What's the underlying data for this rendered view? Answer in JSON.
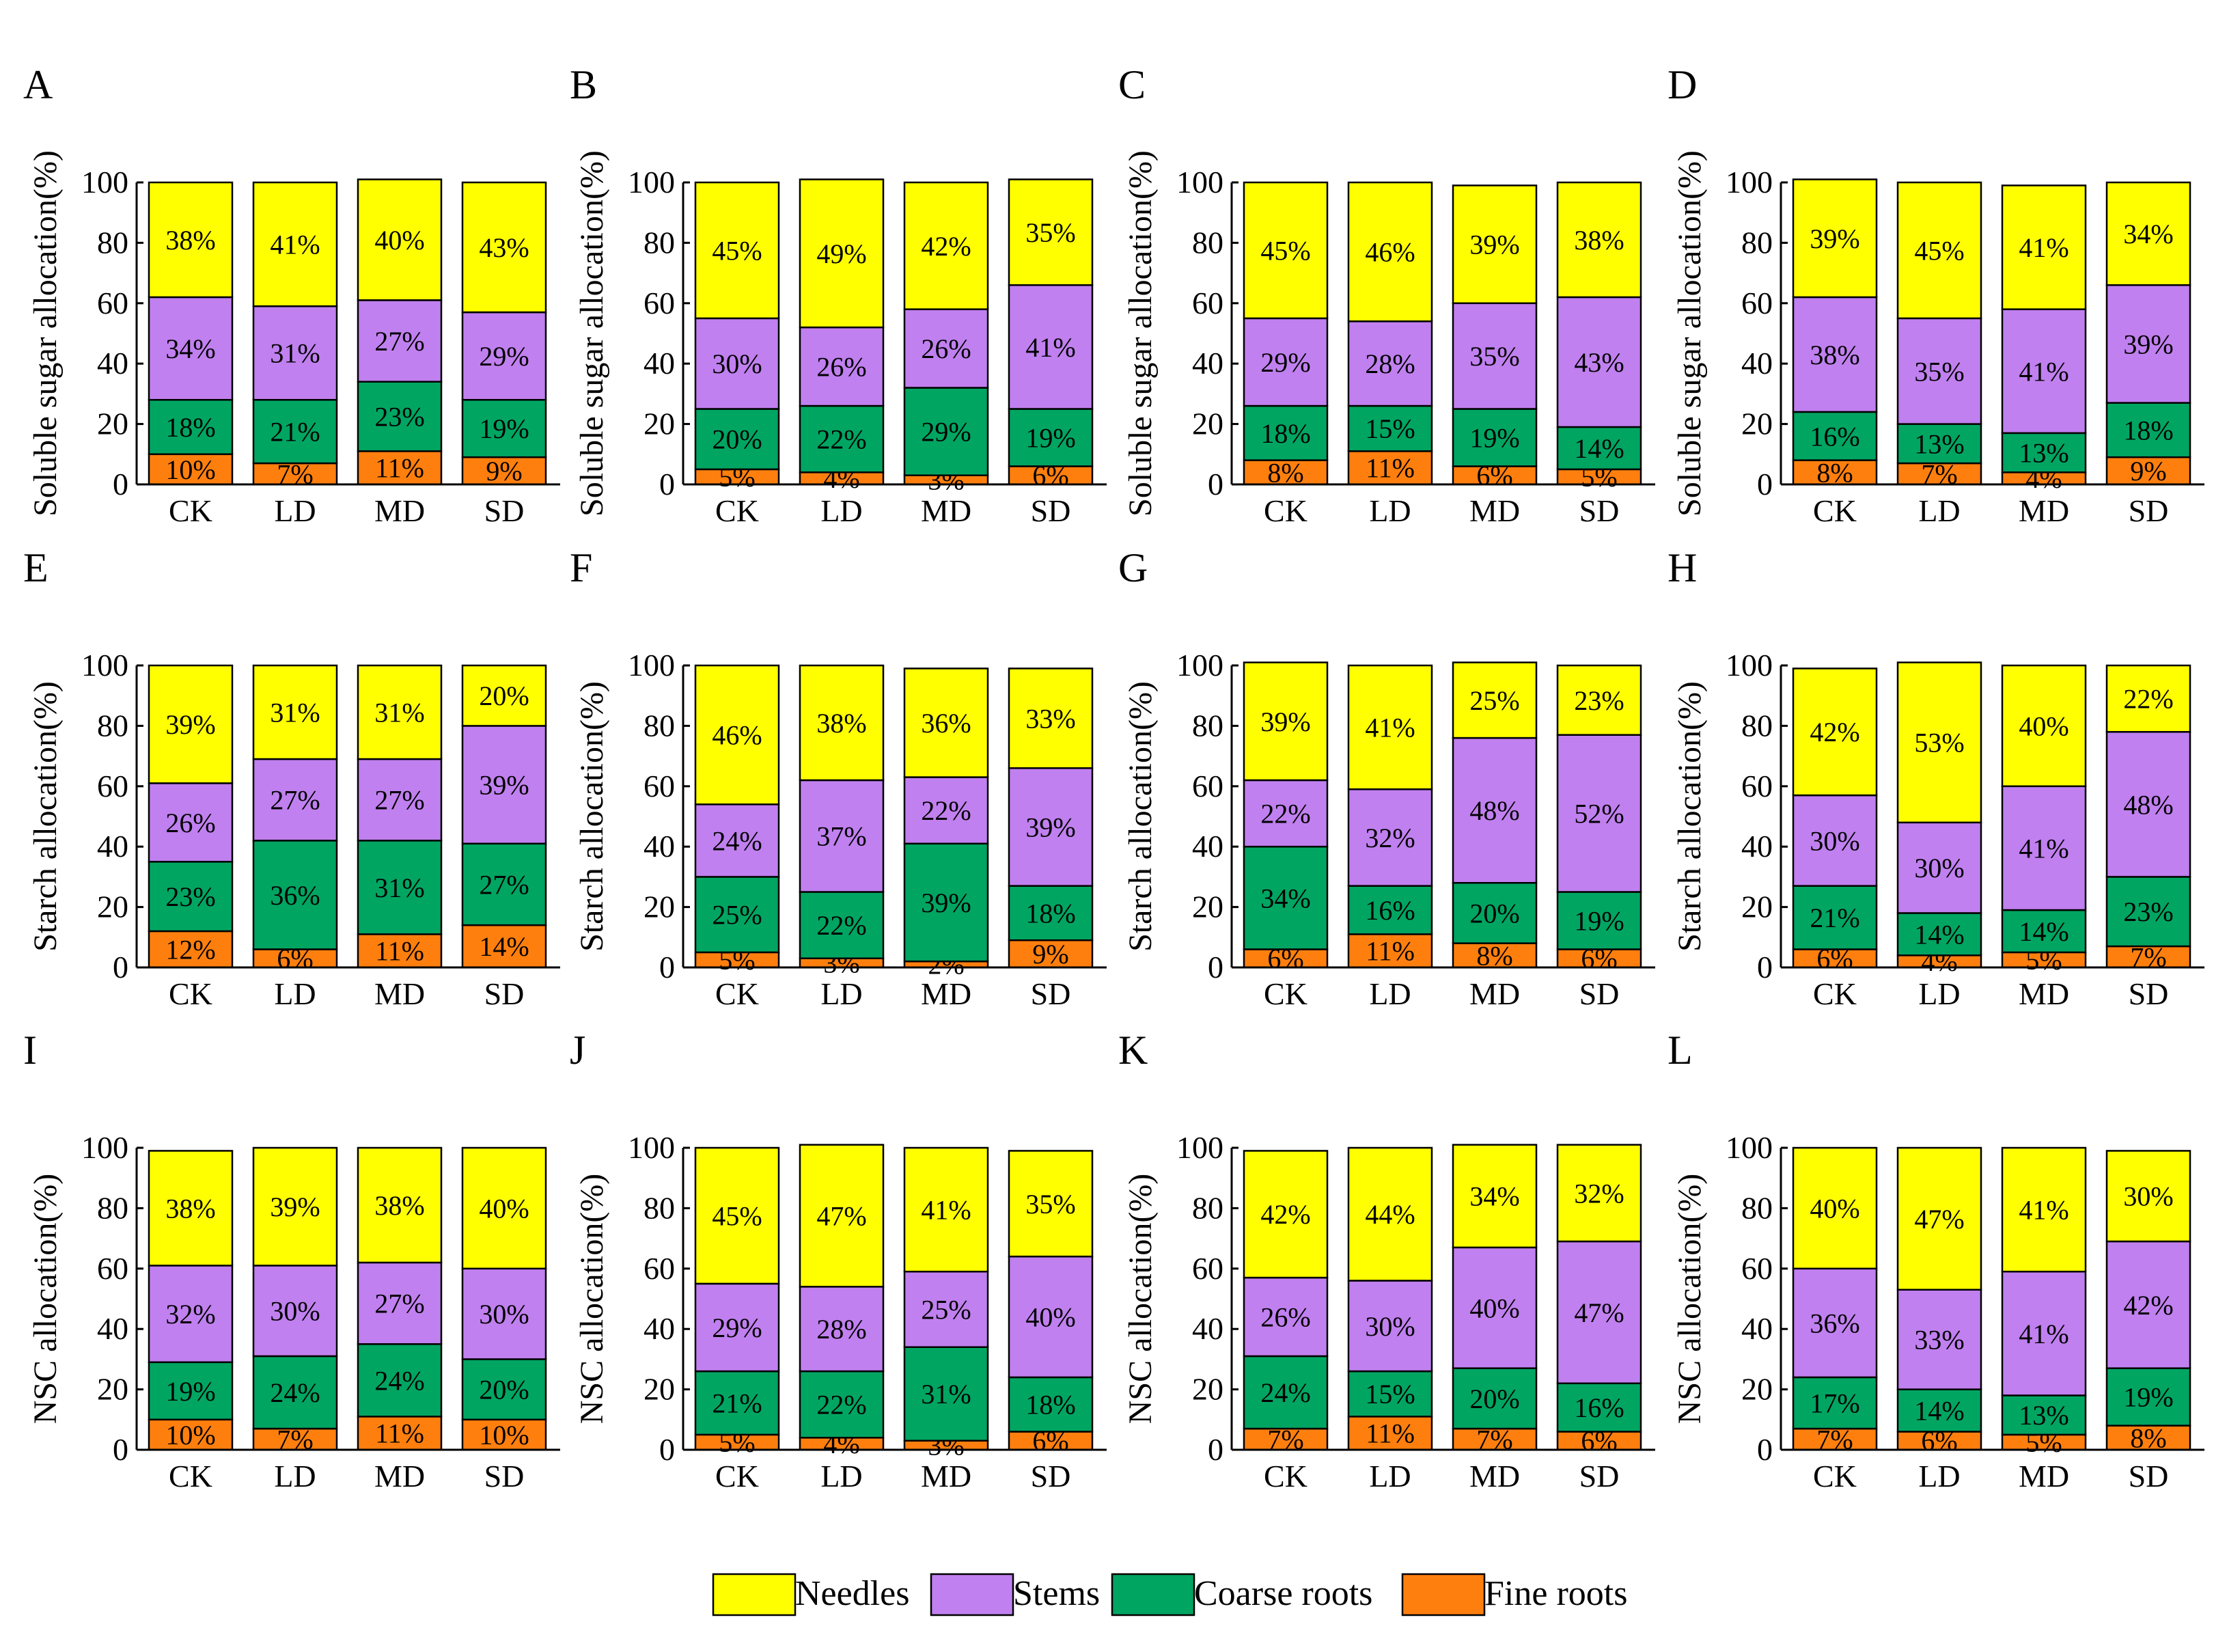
{
  "categories": [
    "CK",
    "LD",
    "MD",
    "SD"
  ],
  "series_names": [
    "Fine roots",
    "Coarse roots",
    "Stems",
    "Needles"
  ],
  "colors": {
    "Fine roots": "#ff7f0e",
    "Coarse roots": "#00a562",
    "Stems": "#c080ef",
    "Needles": "#ffff00"
  },
  "y_ticks": [
    "0",
    "20",
    "40",
    "60",
    "80",
    "100"
  ],
  "legend": {
    "items": [
      {
        "name": "Needles",
        "label": "Needles",
        "color": "#ffff00"
      },
      {
        "name": "Stems",
        "label": "Stems",
        "color": "#c080ef"
      },
      {
        "name": "Coarse roots",
        "label": "Coarse roots",
        "color": "#00a562"
      },
      {
        "name": "Fine roots",
        "label": "Fine roots",
        "color": "#ff7f0e"
      }
    ]
  },
  "chart_data": [
    {
      "panel": "A",
      "type": "bar",
      "stacked": true,
      "ylabel": "Soluble sugar allocation(%)",
      "ylim": [
        0,
        100
      ],
      "categories": [
        "CK",
        "LD",
        "MD",
        "SD"
      ],
      "series": [
        {
          "name": "Fine roots",
          "values": [
            10,
            7,
            11,
            9
          ]
        },
        {
          "name": "Coarse roots",
          "values": [
            18,
            21,
            23,
            19
          ]
        },
        {
          "name": "Stems",
          "values": [
            34,
            31,
            27,
            29
          ]
        },
        {
          "name": "Needles",
          "values": [
            38,
            41,
            40,
            43
          ]
        }
      ]
    },
    {
      "panel": "B",
      "type": "bar",
      "stacked": true,
      "ylabel": "Soluble sugar allocation(%)",
      "ylim": [
        0,
        100
      ],
      "categories": [
        "CK",
        "LD",
        "MD",
        "SD"
      ],
      "series": [
        {
          "name": "Fine roots",
          "values": [
            5,
            4,
            3,
            6
          ]
        },
        {
          "name": "Coarse roots",
          "values": [
            20,
            22,
            29,
            19
          ]
        },
        {
          "name": "Stems",
          "values": [
            30,
            26,
            26,
            41
          ]
        },
        {
          "name": "Needles",
          "values": [
            45,
            49,
            42,
            35
          ]
        }
      ]
    },
    {
      "panel": "C",
      "type": "bar",
      "stacked": true,
      "ylabel": "Soluble sugar allocation(%)",
      "ylim": [
        0,
        100
      ],
      "categories": [
        "CK",
        "LD",
        "MD",
        "SD"
      ],
      "series": [
        {
          "name": "Fine roots",
          "values": [
            8,
            11,
            6,
            5
          ]
        },
        {
          "name": "Coarse roots",
          "values": [
            18,
            15,
            19,
            14
          ]
        },
        {
          "name": "Stems",
          "values": [
            29,
            28,
            35,
            43
          ]
        },
        {
          "name": "Needles",
          "values": [
            45,
            46,
            39,
            38
          ]
        }
      ]
    },
    {
      "panel": "D",
      "type": "bar",
      "stacked": true,
      "ylabel": "Soluble sugar allocation(%)",
      "ylim": [
        0,
        100
      ],
      "categories": [
        "CK",
        "LD",
        "MD",
        "SD"
      ],
      "series": [
        {
          "name": "Fine roots",
          "values": [
            8,
            7,
            4,
            9
          ]
        },
        {
          "name": "Coarse roots",
          "values": [
            16,
            13,
            13,
            18
          ]
        },
        {
          "name": "Stems",
          "values": [
            38,
            35,
            41,
            39
          ]
        },
        {
          "name": "Needles",
          "values": [
            39,
            45,
            41,
            34
          ]
        }
      ]
    },
    {
      "panel": "E",
      "type": "bar",
      "stacked": true,
      "ylabel": "Starch allocation(%)",
      "ylim": [
        0,
        100
      ],
      "categories": [
        "CK",
        "LD",
        "MD",
        "SD"
      ],
      "series": [
        {
          "name": "Fine roots",
          "values": [
            12,
            6,
            11,
            14
          ]
        },
        {
          "name": "Coarse roots",
          "values": [
            23,
            36,
            31,
            27
          ]
        },
        {
          "name": "Stems",
          "values": [
            26,
            27,
            27,
            39
          ]
        },
        {
          "name": "Needles",
          "values": [
            39,
            31,
            31,
            20
          ]
        }
      ]
    },
    {
      "panel": "F",
      "type": "bar",
      "stacked": true,
      "ylabel": "Starch allocation(%)",
      "ylim": [
        0,
        100
      ],
      "categories": [
        "CK",
        "LD",
        "MD",
        "SD"
      ],
      "series": [
        {
          "name": "Fine roots",
          "values": [
            5,
            3,
            2,
            9
          ]
        },
        {
          "name": "Coarse roots",
          "values": [
            25,
            22,
            39,
            18
          ]
        },
        {
          "name": "Stems",
          "values": [
            24,
            37,
            22,
            39
          ]
        },
        {
          "name": "Needles",
          "values": [
            46,
            38,
            36,
            33
          ]
        }
      ]
    },
    {
      "panel": "G",
      "type": "bar",
      "stacked": true,
      "ylabel": "Starch allocation(%)",
      "ylim": [
        0,
        100
      ],
      "categories": [
        "CK",
        "LD",
        "MD",
        "SD"
      ],
      "series": [
        {
          "name": "Fine roots",
          "values": [
            6,
            11,
            8,
            6
          ]
        },
        {
          "name": "Coarse roots",
          "values": [
            34,
            16,
            20,
            19
          ]
        },
        {
          "name": "Stems",
          "values": [
            22,
            32,
            48,
            52
          ]
        },
        {
          "name": "Needles",
          "values": [
            39,
            41,
            25,
            23
          ]
        }
      ]
    },
    {
      "panel": "H",
      "type": "bar",
      "stacked": true,
      "ylabel": "Starch allocation(%)",
      "ylim": [
        0,
        100
      ],
      "categories": [
        "CK",
        "LD",
        "MD",
        "SD"
      ],
      "series": [
        {
          "name": "Fine roots",
          "values": [
            6,
            4,
            5,
            7
          ]
        },
        {
          "name": "Coarse roots",
          "values": [
            21,
            14,
            14,
            23
          ]
        },
        {
          "name": "Stems",
          "values": [
            30,
            30,
            41,
            48
          ]
        },
        {
          "name": "Needles",
          "values": [
            42,
            53,
            40,
            22
          ]
        }
      ]
    },
    {
      "panel": "I",
      "type": "bar",
      "stacked": true,
      "ylabel": "NSC allocation(%)",
      "ylim": [
        0,
        100
      ],
      "categories": [
        "CK",
        "LD",
        "MD",
        "SD"
      ],
      "series": [
        {
          "name": "Fine roots",
          "values": [
            10,
            7,
            11,
            10
          ]
        },
        {
          "name": "Coarse roots",
          "values": [
            19,
            24,
            24,
            20
          ]
        },
        {
          "name": "Stems",
          "values": [
            32,
            30,
            27,
            30
          ]
        },
        {
          "name": "Needles",
          "values": [
            38,
            39,
            38,
            40
          ]
        }
      ]
    },
    {
      "panel": "J",
      "type": "bar",
      "stacked": true,
      "ylabel": "NSC allocation(%)",
      "ylim": [
        0,
        100
      ],
      "categories": [
        "CK",
        "LD",
        "MD",
        "SD"
      ],
      "series": [
        {
          "name": "Fine roots",
          "values": [
            5,
            4,
            3,
            6
          ]
        },
        {
          "name": "Coarse roots",
          "values": [
            21,
            22,
            31,
            18
          ]
        },
        {
          "name": "Stems",
          "values": [
            29,
            28,
            25,
            40
          ]
        },
        {
          "name": "Needles",
          "values": [
            45,
            47,
            41,
            35
          ]
        }
      ]
    },
    {
      "panel": "K",
      "type": "bar",
      "stacked": true,
      "ylabel": "NSC allocation(%)",
      "ylim": [
        0,
        100
      ],
      "categories": [
        "CK",
        "LD",
        "MD",
        "SD"
      ],
      "series": [
        {
          "name": "Fine roots",
          "values": [
            7,
            11,
            7,
            6
          ]
        },
        {
          "name": "Coarse roots",
          "values": [
            24,
            15,
            20,
            16
          ]
        },
        {
          "name": "Stems",
          "values": [
            26,
            30,
            40,
            47
          ]
        },
        {
          "name": "Needles",
          "values": [
            42,
            44,
            34,
            32
          ]
        }
      ]
    },
    {
      "panel": "L",
      "type": "bar",
      "stacked": true,
      "ylabel": "NSC allocation(%)",
      "ylim": [
        0,
        100
      ],
      "categories": [
        "CK",
        "LD",
        "MD",
        "SD"
      ],
      "series": [
        {
          "name": "Fine roots",
          "values": [
            7,
            6,
            5,
            8
          ]
        },
        {
          "name": "Coarse roots",
          "values": [
            17,
            14,
            13,
            19
          ]
        },
        {
          "name": "Stems",
          "values": [
            36,
            33,
            41,
            42
          ]
        },
        {
          "name": "Needles",
          "values": [
            40,
            47,
            41,
            30
          ]
        }
      ]
    }
  ]
}
